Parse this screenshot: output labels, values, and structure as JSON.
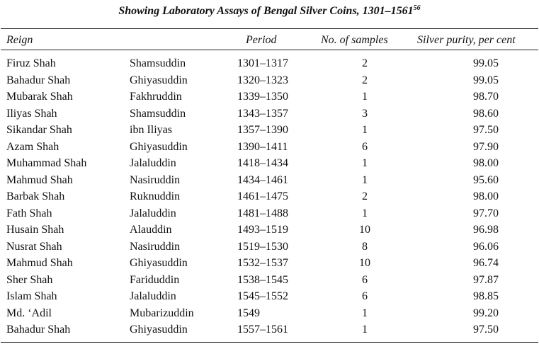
{
  "table": {
    "title": "Showing Laboratory Assays of Bengal Silver Coins, 1301–1561",
    "footnote_ref": "56",
    "headers": {
      "reign": "Reign",
      "period": "Period",
      "samples": "No. of samples",
      "purity": "Silver purity, per cent"
    },
    "rows": [
      {
        "ruler": "Firuz Shah",
        "title": "Shamsuddin",
        "period": "1301–1317",
        "samples": "2",
        "purity": "99.05"
      },
      {
        "ruler": "Bahadur Shah",
        "title": "Ghiyasuddin",
        "period": "1320–1323",
        "samples": "2",
        "purity": "99.05"
      },
      {
        "ruler": "Mubarak Shah",
        "title": "Fakhruddin",
        "period": "1339–1350",
        "samples": "1",
        "purity": "98.70"
      },
      {
        "ruler": "Iliyas Shah",
        "title": "Shamsuddin",
        "period": "1343–1357",
        "samples": "3",
        "purity": "98.60"
      },
      {
        "ruler": "Sikandar Shah",
        "title": "ibn Iliyas",
        "period": "1357–1390",
        "samples": "1",
        "purity": "97.50"
      },
      {
        "ruler": "Azam Shah",
        "title": "Ghiyasuddin",
        "period": "1390–1411",
        "samples": "6",
        "purity": "97.90"
      },
      {
        "ruler": "Muhammad Shah",
        "title": "Jalaluddin",
        "period": "1418–1434",
        "samples": "1",
        "purity": "98.00"
      },
      {
        "ruler": "Mahmud Shah",
        "title": "Nasiruddin",
        "period": "1434–1461",
        "samples": "1",
        "purity": "95.60"
      },
      {
        "ruler": "Barbak Shah",
        "title": "Ruknuddin",
        "period": "1461–1475",
        "samples": "2",
        "purity": "98.00"
      },
      {
        "ruler": "Fath Shah",
        "title": "Jalaluddin",
        "period": "1481–1488",
        "samples": "1",
        "purity": "97.70"
      },
      {
        "ruler": "Husain Shah",
        "title": "Alauddin",
        "period": "1493–1519",
        "samples": "10",
        "purity": "96.98"
      },
      {
        "ruler": "Nusrat Shah",
        "title": "Nasiruddin",
        "period": "1519–1530",
        "samples": "8",
        "purity": "96.06"
      },
      {
        "ruler": "Mahmud Shah",
        "title": "Ghiyasuddin",
        "period": "1532–1537",
        "samples": "10",
        "purity": "96.74"
      },
      {
        "ruler": "Sher Shah",
        "title": "Fariduddin",
        "period": "1538–1545",
        "samples": "6",
        "purity": "97.87"
      },
      {
        "ruler": "Islam Shah",
        "title": "Jalaluddin",
        "period": "1545–1552",
        "samples": "6",
        "purity": "98.85"
      },
      {
        "ruler": "Md. ‘Adil",
        "title": "Mubarizuddin",
        "period": "1549",
        "samples": "1",
        "purity": "99.20"
      },
      {
        "ruler": "Bahadur Shah",
        "title": "Ghiyasuddin",
        "period": "1557–1561",
        "samples": "1",
        "purity": "97.50"
      }
    ]
  }
}
